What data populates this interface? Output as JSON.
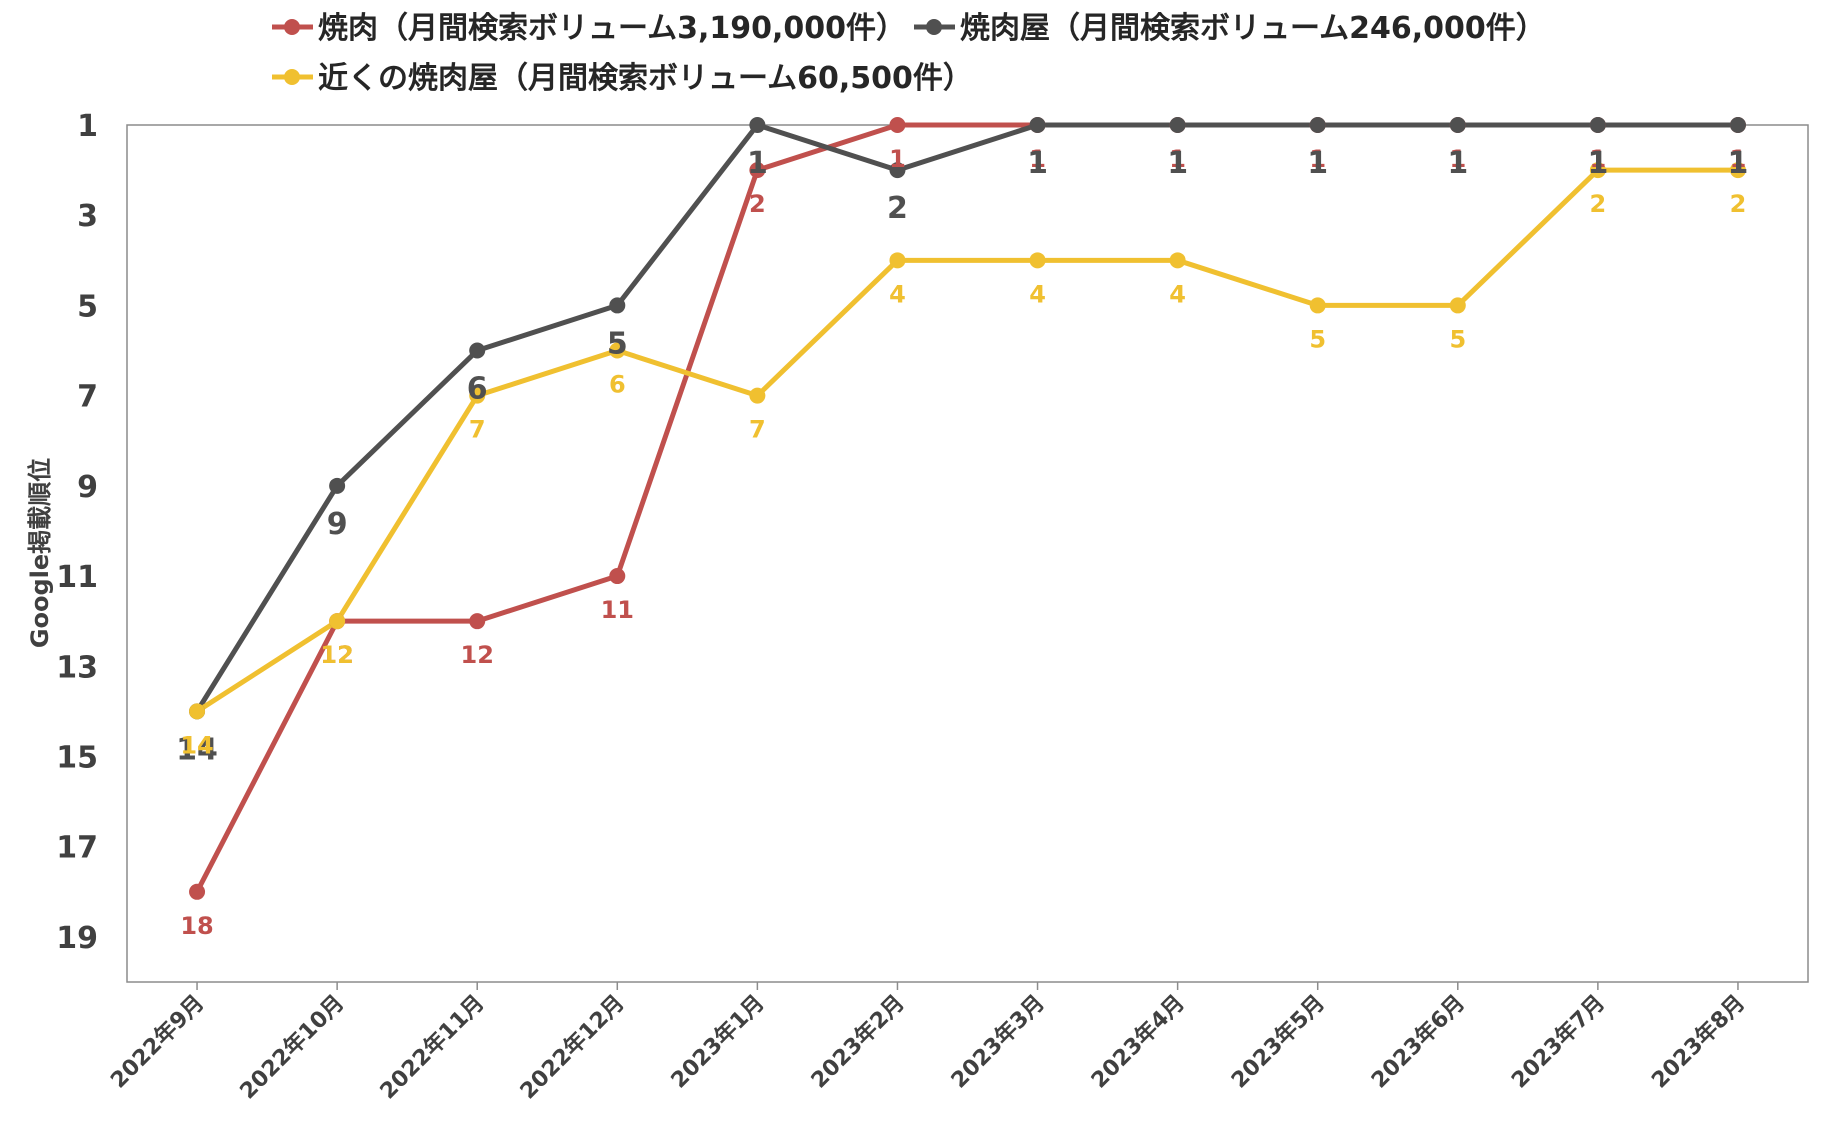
{
  "chart_data": {
    "type": "line",
    "ylabel": "Google掲載順位",
    "xlabel": "",
    "ylim": [
      1,
      20
    ],
    "y_reversed": true,
    "yticks": [
      "1",
      "3",
      "5",
      "7",
      "9",
      "11",
      "13",
      "15",
      "17",
      "19"
    ],
    "grid": false,
    "legend_position": "top",
    "categories": [
      "2022年9月",
      "2022年10月",
      "2022年11月",
      "2022年12月",
      "2023年1月",
      "2023年2月",
      "2023年3月",
      "2023年4月",
      "2023年5月",
      "2023年6月",
      "2023年7月",
      "2023年8月"
    ],
    "series": [
      {
        "name": "焼肉（月間検索ボリューム3,190,000件）",
        "color": "#c0504d",
        "values": [
          18,
          12,
          12,
          11,
          2,
          1,
          1,
          1,
          1,
          1,
          1,
          1
        ]
      },
      {
        "name": "焼肉屋（月間検索ボリューム246,000件）",
        "color": "#505050",
        "values": [
          14,
          9,
          6,
          5,
          1,
          2,
          1,
          1,
          1,
          1,
          1,
          1
        ]
      },
      {
        "name": "近くの焼肉屋（月間検索ボリューム60,500件）",
        "color": "#f0c030",
        "values": [
          14,
          12,
          7,
          6,
          7,
          4,
          4,
          4,
          5,
          5,
          2,
          2
        ]
      }
    ]
  }
}
